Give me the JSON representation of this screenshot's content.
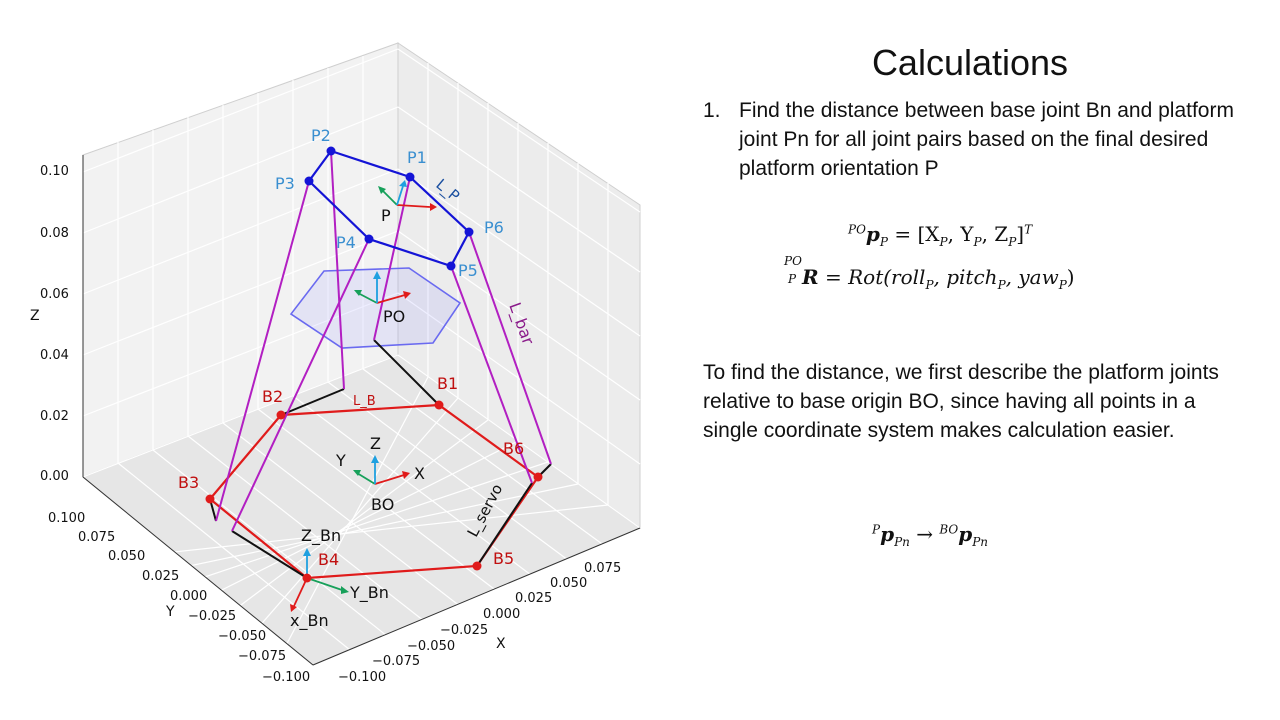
{
  "slide": {
    "title": "Calculations",
    "step_number": "1.",
    "step_text": "Find the distance between base joint Bn and platform joint Pn for all joint pairs based on the final desired platform orientation P",
    "paragraph": "To find the distance, we first describe the platform joints relative to base origin BO, since having all points in a single coordinate system makes calculation easier.",
    "eq1_lhs_pre": "PO",
    "eq1_lhs": "p",
    "eq1_lhs_sub": "P",
    "eq1_rhs": "= [X",
    "eq1_sub_x": "P",
    "eq1_y": ", Y",
    "eq1_sub_y": "P",
    "eq1_z": ", Z",
    "eq1_sub_z": "P",
    "eq1_close": "]",
    "eq1_sup": "T",
    "eq2_pre_up": "PO",
    "eq2_pre_dn": "P",
    "eq2_lhs": "R",
    "eq2_rhs": "= Rot(roll",
    "eq2_sub1": "P",
    "eq2_mid1": ", pitch",
    "eq2_sub2": "P",
    "eq2_mid2": ", yaw",
    "eq2_sub3": "P",
    "eq2_end": ")",
    "eq3_pre1": "P",
    "eq3_p1": "p",
    "eq3_sub1": "Pn",
    "eq3_arrow": " → ",
    "eq3_pre2": "BO",
    "eq3_p2": "p",
    "eq3_sub2": "Pn"
  },
  "figure": {
    "z_axis_label": "Z",
    "x_axis_label": "X",
    "y_axis_label": "Y",
    "z_ticks": [
      "0.00",
      "0.02",
      "0.04",
      "0.06",
      "0.08",
      "0.10"
    ],
    "y_ticks": [
      "0.100",
      "0.075",
      "0.050",
      "0.025",
      "0.000",
      "−0.025",
      "−0.050",
      "−0.075",
      "−0.100"
    ],
    "x_ticks": [
      "−0.100",
      "−0.075",
      "−0.050",
      "−0.025",
      "0.000",
      "0.025",
      "0.050",
      "0.075"
    ],
    "platform_points": [
      "P1",
      "P2",
      "P3",
      "P4",
      "P5",
      "P6"
    ],
    "base_points": [
      "B1",
      "B2",
      "B3",
      "B4",
      "B5",
      "B6"
    ],
    "labels": {
      "P": "P",
      "PO": "PO",
      "BO": "BO",
      "L_P": "L_P",
      "L_B": "L_B",
      "L_bar": "L_bar",
      "L_servo": "L_servo",
      "X": "X",
      "Y": "Y",
      "Z": "Z",
      "Z_Bn": "Z_Bn",
      "Y_Bn": "Y_Bn",
      "x_Bn": "x_Bn"
    },
    "colors": {
      "platform": "#1414d6",
      "platform_label": "#3a8fd0",
      "base": "#e01b1b",
      "base_label": "#c01010",
      "bar": "#b21fc2",
      "servo": "#111111",
      "hexagon": "#6a6af0",
      "axis_x": "#e01b1b",
      "axis_y": "#17a05a",
      "axis_z": "#1fa0e0"
    }
  }
}
